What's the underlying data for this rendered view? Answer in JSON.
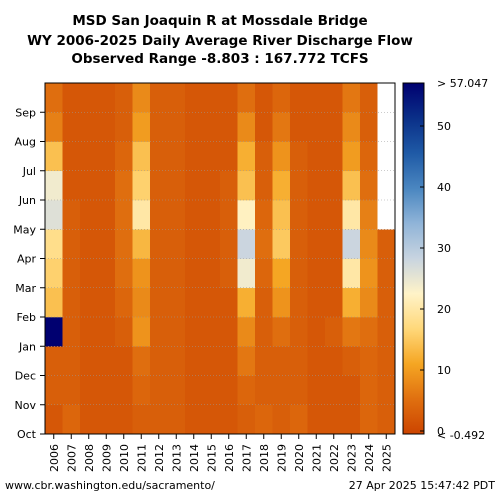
{
  "footer": {
    "source": "www.cbr.washington.edu/sacramento/",
    "timestamp": "27 Apr 2025 15:47:42 PDT"
  },
  "chart_data": {
    "type": "heatmap",
    "title_lines": [
      "MSD San Joaquin R at Mossdale Bridge",
      "WY 2006-2025 Daily Average River Discharge Flow",
      "Observed Range -8.803 : 167.772 TCFS"
    ],
    "x_categories": [
      "2006",
      "2007",
      "2008",
      "2009",
      "2010",
      "2011",
      "2012",
      "2013",
      "2014",
      "2015",
      "2016",
      "2017",
      "2018",
      "2019",
      "2020",
      "2021",
      "2022",
      "2023",
      "2024",
      "2025"
    ],
    "y_categories": [
      "Oct",
      "Nov",
      "Dec",
      "Jan",
      "Feb",
      "Mar",
      "Apr",
      "May",
      "Jun",
      "Jul",
      "Aug",
      "Sep"
    ],
    "colorbar": {
      "min_label": "< -0.492",
      "max_label": "> 57.047",
      "ticks": [
        0,
        10,
        20,
        30,
        40,
        50
      ],
      "range": [
        -0.492,
        57.047
      ],
      "colors": [
        "#cc4400",
        "#e07010",
        "#f5a623",
        "#ffd87a",
        "#fff3c8",
        "#c8d4e0",
        "#90b4d8",
        "#4a86c0",
        "#1f5aa6",
        "#0a2f88",
        "#000070"
      ]
    },
    "monthly_flow_tcfs": {
      "2006": [
        2,
        3,
        3,
        58,
        14,
        16,
        18,
        26,
        24,
        14,
        7,
        5
      ],
      "2007": [
        4,
        3,
        3,
        3,
        3,
        3,
        3,
        3,
        2,
        2,
        2,
        2
      ],
      "2008": [
        2,
        2,
        2,
        2,
        2,
        2,
        2,
        2,
        2,
        2,
        2,
        2
      ],
      "2009": [
        2,
        2,
        2,
        2,
        2,
        2,
        2,
        2,
        2,
        2,
        2,
        2
      ],
      "2010": [
        2,
        2,
        2,
        3,
        4,
        5,
        5,
        5,
        5,
        4,
        3,
        3
      ],
      "2011": [
        3,
        4,
        5,
        9,
        8,
        9,
        13,
        20,
        16,
        14,
        10,
        8
      ],
      "2012": [
        3,
        3,
        3,
        3,
        3,
        3,
        3,
        3,
        3,
        3,
        3,
        3
      ],
      "2013": [
        3,
        3,
        3,
        3,
        3,
        3,
        3,
        3,
        3,
        3,
        3,
        3
      ],
      "2014": [
        2,
        2,
        2,
        2,
        2,
        2,
        2,
        2,
        2,
        2,
        2,
        2
      ],
      "2015": [
        2,
        2,
        2,
        2,
        2,
        2,
        2,
        2,
        2,
        2,
        2,
        2
      ],
      "2016": [
        2,
        2,
        2,
        2,
        2,
        3,
        3,
        3,
        3,
        2,
        2,
        2
      ],
      "2017": [
        3,
        4,
        6,
        8,
        12,
        24,
        28,
        22,
        14,
        12,
        8,
        5
      ],
      "2018": [
        4,
        3,
        3,
        3,
        3,
        4,
        5,
        4,
        3,
        3,
        2,
        2
      ],
      "2019": [
        3,
        3,
        3,
        5,
        9,
        11,
        15,
        14,
        12,
        9,
        6,
        4
      ],
      "2020": [
        4,
        3,
        3,
        3,
        3,
        3,
        3,
        3,
        3,
        3,
        2,
        2
      ],
      "2021": [
        2,
        2,
        2,
        2,
        2,
        2,
        2,
        2,
        2,
        2,
        2,
        2
      ],
      "2022": [
        2,
        2,
        2,
        3,
        2,
        2,
        2,
        2,
        2,
        2,
        2,
        2
      ],
      "2023": [
        2,
        2,
        3,
        6,
        12,
        20,
        28,
        20,
        14,
        10,
        8,
        6
      ],
      "2024": [
        4,
        4,
        4,
        5,
        8,
        9,
        8,
        7,
        5,
        4,
        3,
        3
      ],
      "2025": [
        3,
        3,
        3,
        3,
        3,
        3,
        3,
        null,
        null,
        null,
        null,
        null
      ]
    }
  }
}
